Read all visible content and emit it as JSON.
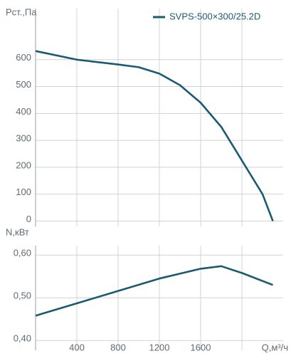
{
  "chart_data": [
    {
      "type": "line",
      "ylabel": "Pст.,Па",
      "x": [
        0,
        400,
        800,
        1000,
        1200,
        1400,
        1600,
        1800,
        2000,
        2200,
        2300
      ],
      "series": [
        {
          "name": "SVPS-500×300/25.2D",
          "color": "#1b5a72",
          "values": [
            632,
            600,
            582,
            572,
            548,
            505,
            440,
            350,
            225,
            100,
            0
          ]
        }
      ],
      "xlim": [
        0,
        2400
      ],
      "xticks": [
        400,
        800,
        1200,
        1600,
        2000
      ],
      "xtick_labels": false,
      "ylim": [
        -20,
        790
      ],
      "yticks": [
        0,
        100,
        200,
        300,
        400,
        500,
        600
      ],
      "grid": true,
      "legend": "top-right"
    },
    {
      "type": "line",
      "ylabel": "N,кВт",
      "xlabel": "Q,м³/ч",
      "x": [
        0,
        400,
        800,
        1200,
        1600,
        1800,
        2000,
        2300
      ],
      "series": [
        {
          "name": "SVPS-500×300/25.2D",
          "color": "#1b5a72",
          "values": [
            0.458,
            0.487,
            0.516,
            0.545,
            0.568,
            0.574,
            0.558,
            0.53
          ]
        }
      ],
      "xlim": [
        0,
        2400
      ],
      "xticks": [
        400,
        800,
        1200,
        1600,
        2000
      ],
      "xtick_labels": true,
      "ylim": [
        0.377,
        0.622
      ],
      "yticks": [
        {
          "value": 0.4,
          "label": "0,40"
        },
        {
          "value": 0.5,
          "label": "0,50"
        },
        {
          "value": 0.6,
          "label": "0,60"
        }
      ],
      "grid": true
    }
  ]
}
